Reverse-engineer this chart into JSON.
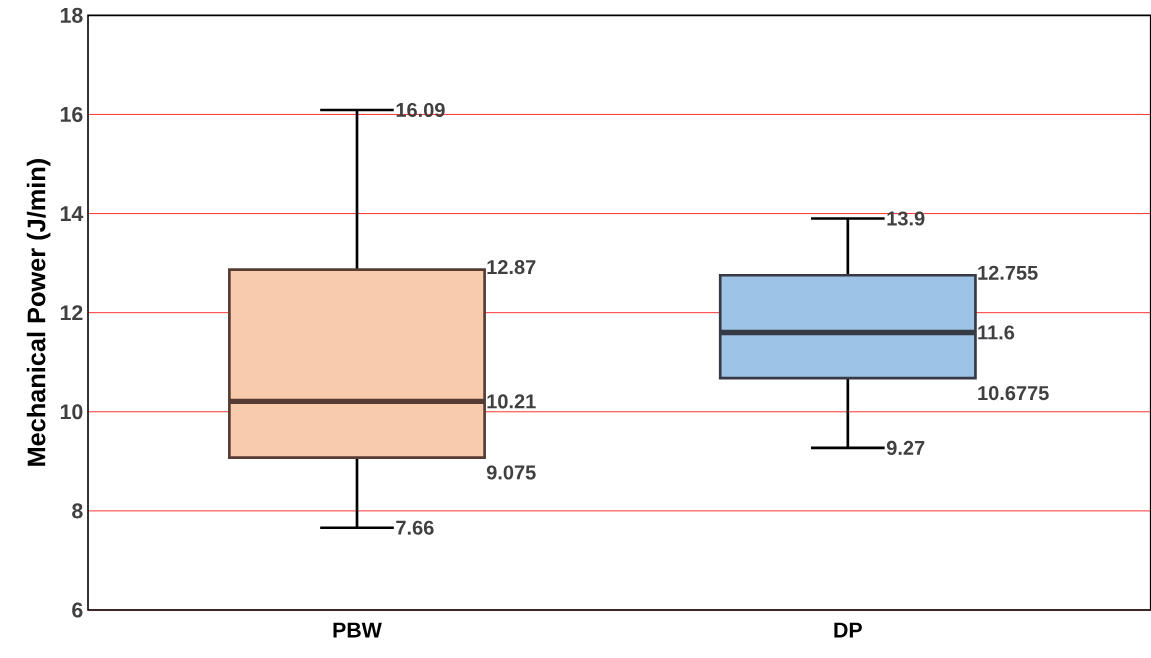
{
  "chart_data": {
    "type": "box",
    "ylabel": "Mechanical Power (J/min)",
    "categories": [
      "PBW",
      "DP"
    ],
    "boxes": [
      {
        "low": 7.66,
        "q1": 9.075,
        "median": 10.21,
        "q3": 12.87,
        "high": 16.09
      },
      {
        "low": 9.27,
        "q1": 10.6775,
        "median": 11.6,
        "q3": 12.755,
        "high": 13.9
      }
    ],
    "colors": [
      "#f8cbad",
      "#9dc3e6"
    ],
    "ylim": [
      6,
      18
    ],
    "yticks": [
      6,
      8,
      10,
      12,
      14,
      16,
      18
    ],
    "grid": "y",
    "annotations": [
      "16.09",
      "12.87",
      "10.21",
      "9.075",
      "7.66",
      "13.9",
      "12.755",
      "11.6",
      "10.6775",
      "9.27"
    ]
  }
}
